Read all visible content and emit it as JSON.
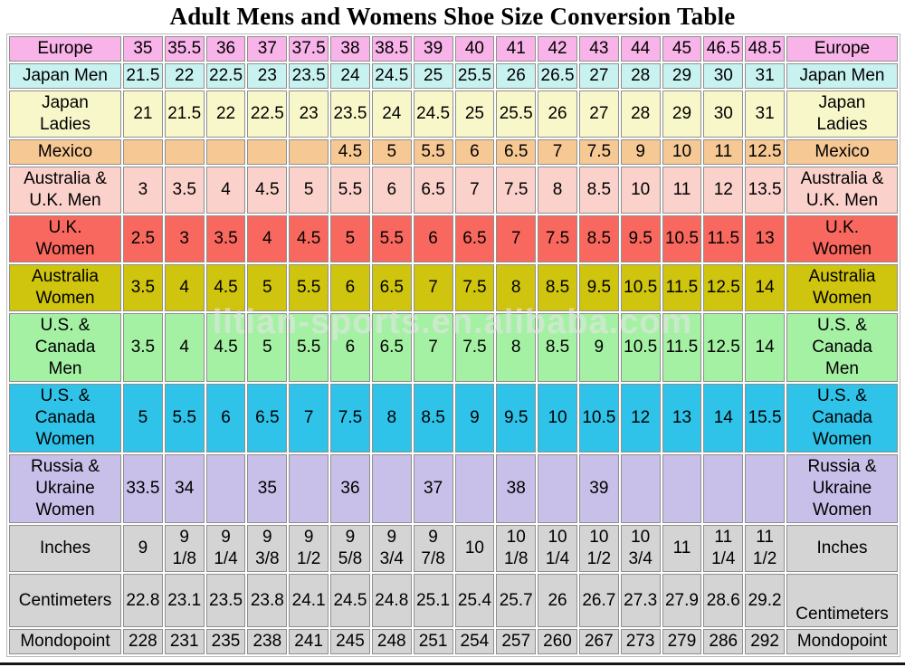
{
  "title": "Adult Mens and Womens Shoe Size Conversion Table",
  "watermark": "litian-sports.en.alibaba.com",
  "table": {
    "data_columns": 16,
    "rows": [
      {
        "id": "europe",
        "label": "Europe",
        "bg": "#f8b3e8",
        "values": [
          "35",
          "35.5",
          "36",
          "37",
          "37.5",
          "38",
          "38.5",
          "39",
          "40",
          "41",
          "42",
          "43",
          "44",
          "45",
          "46.5",
          "48.5"
        ]
      },
      {
        "id": "japan-men",
        "label": "Japan Men",
        "bg": "#c8f2f0",
        "values": [
          "21.5",
          "22",
          "22.5",
          "23",
          "23.5",
          "24",
          "24.5",
          "25",
          "25.5",
          "26",
          "26.5",
          "27",
          "28",
          "29",
          "30",
          "31"
        ]
      },
      {
        "id": "japan-ladies",
        "label": "Japan\nLadies",
        "bg": "#f8f7ca",
        "values": [
          "21",
          "21.5",
          "22",
          "22.5",
          "23",
          "23.5",
          "24",
          "24.5",
          "25",
          "25.5",
          "26",
          "27",
          "28",
          "29",
          "30",
          "31"
        ]
      },
      {
        "id": "mexico",
        "label": "Mexico",
        "bg": "#f6c893",
        "values": [
          "",
          "",
          "",
          "",
          "",
          "4.5",
          "5",
          "5.5",
          "6",
          "6.5",
          "7",
          "7.5",
          "9",
          "10",
          "11",
          "12.5"
        ]
      },
      {
        "id": "australia-uk-men",
        "label": "Australia &\nU.K. Men",
        "bg": "#fad1cb",
        "values": [
          "3",
          "3.5",
          "4",
          "4.5",
          "5",
          "5.5",
          "6",
          "6.5",
          "7",
          "7.5",
          "8",
          "8.5",
          "10",
          "11",
          "12",
          "13.5"
        ]
      },
      {
        "id": "uk-women",
        "label": "U.K.\nWomen",
        "bg": "#f8685e",
        "values": [
          "2.5",
          "3",
          "3.5",
          "4",
          "4.5",
          "5",
          "5.5",
          "6",
          "6.5",
          "7",
          "7.5",
          "8.5",
          "9.5",
          "10.5",
          "11.5",
          "13"
        ]
      },
      {
        "id": "australia-women",
        "label": "Australia\nWomen",
        "bg": "#cfc40e",
        "values": [
          "3.5",
          "4",
          "4.5",
          "5",
          "5.5",
          "6",
          "6.5",
          "7",
          "7.5",
          "8",
          "8.5",
          "9.5",
          "10.5",
          "11.5",
          "12.5",
          "14"
        ]
      },
      {
        "id": "us-canada-men",
        "label": "U.S. &\nCanada\nMen",
        "bg": "#a4f1a4",
        "values": [
          "3.5",
          "4",
          "4.5",
          "5",
          "5.5",
          "6",
          "6.5",
          "7",
          "7.5",
          "8",
          "8.5",
          "9",
          "10.5",
          "11.5",
          "12.5",
          "14"
        ]
      },
      {
        "id": "us-canada-women",
        "label": "U.S. &\nCanada\nWomen",
        "bg": "#2fc3e9",
        "values": [
          "5",
          "5.5",
          "6",
          "6.5",
          "7",
          "7.5",
          "8",
          "8.5",
          "9",
          "9.5",
          "10",
          "10.5",
          "12",
          "13",
          "14",
          "15.5"
        ]
      },
      {
        "id": "russia-ukraine-women",
        "label": "Russia &\nUkraine\nWomen",
        "bg": "#c8c0e8",
        "values": [
          "33.5",
          "34",
          "",
          "35",
          "",
          "36",
          "",
          "37",
          "",
          "38",
          "",
          "39",
          "",
          "",
          "",
          ""
        ]
      },
      {
        "id": "inches",
        "label": "Inches",
        "bg": "#d4d4d4",
        "values": [
          "9",
          "9\n1/8",
          "9\n1/4",
          "9\n3/8",
          "9\n1/2",
          "9\n5/8",
          "9\n3/4",
          "9\n7/8",
          "10",
          "10\n1/8",
          "10\n1/4",
          "10\n1/2",
          "10\n3/4",
          "11",
          "11\n1/4",
          "11\n1/2"
        ]
      },
      {
        "id": "centimeters",
        "label": "Centimeters",
        "bg": "#d4d4d4",
        "values": [
          "22.8",
          "23.1",
          "23.5",
          "23.8",
          "24.1",
          "24.5",
          "24.8",
          "25.1",
          "25.4",
          "25.7",
          "26",
          "26.7",
          "27.3",
          "27.9",
          "28.6",
          "29.2"
        ]
      },
      {
        "id": "mondopoint",
        "label": "Mondopoint",
        "bg": "#d4d4d4",
        "values": [
          "228",
          "231",
          "235",
          "238",
          "241",
          "245",
          "248",
          "251",
          "254",
          "257",
          "260",
          "267",
          "273",
          "279",
          "286",
          "292"
        ]
      }
    ]
  },
  "colors": {
    "cell_border": "#8f8f8f",
    "bottom_rule": "#161616"
  }
}
